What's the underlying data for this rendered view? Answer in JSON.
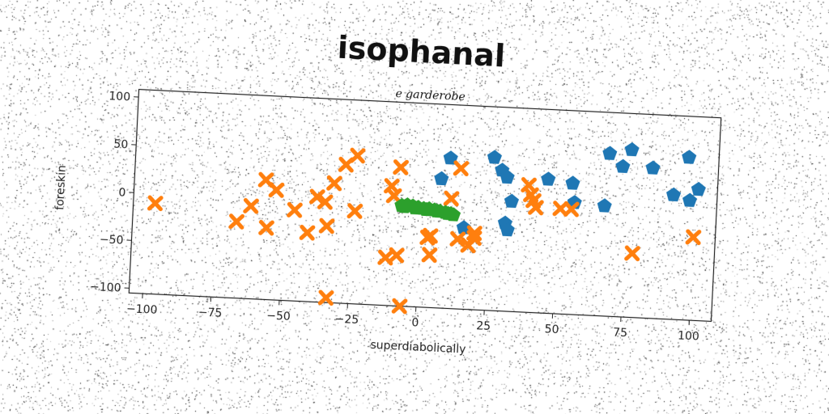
{
  "chart_data": {
    "type": "scatter",
    "title": "isophanal",
    "subtitle": "e garderobe",
    "xlabel": "superdiabolically",
    "ylabel": "foreskin",
    "xlim": [
      -105,
      108
    ],
    "ylim": [
      -105,
      108
    ],
    "xticks": [
      -100,
      -75,
      -50,
      -25,
      0,
      25,
      50,
      75,
      100
    ],
    "yticks": [
      -100,
      -50,
      0,
      50,
      100
    ],
    "grid": false,
    "colors": {
      "blue": "#1f77b4",
      "orange": "#ff7f0e",
      "green": "#2ca02c"
    },
    "series": [
      {
        "marker": "pentagon",
        "color": "#1f77b4",
        "points": [
          [
            10,
            52
          ],
          [
            26,
            55
          ],
          [
            29,
            42
          ],
          [
            31,
            35
          ],
          [
            7,
            30
          ],
          [
            33,
            10
          ],
          [
            31,
            -13
          ],
          [
            32,
            -20
          ],
          [
            46,
            35
          ],
          [
            55,
            32
          ],
          [
            56,
            12
          ],
          [
            67,
            10
          ],
          [
            68,
            65
          ],
          [
            73,
            52
          ],
          [
            76,
            70
          ],
          [
            84,
            52
          ],
          [
            92,
            25
          ],
          [
            97,
            65
          ],
          [
            98,
            20
          ],
          [
            101,
            32
          ],
          [
            16,
            -20
          ]
        ]
      },
      {
        "marker": "x",
        "color": "#ff7f0e",
        "points": [
          [
            -97,
            -10
          ],
          [
            -67,
            -25
          ],
          [
            -62,
            -8
          ],
          [
            -57,
            20
          ],
          [
            -53,
            10
          ],
          [
            -56,
            -30
          ],
          [
            -46,
            -10
          ],
          [
            -41,
            -33
          ],
          [
            -38,
            5
          ],
          [
            -35,
            0
          ],
          [
            -34,
            -25
          ],
          [
            -32,
            20
          ],
          [
            -33,
            -100
          ],
          [
            -28,
            40
          ],
          [
            -24,
            -8
          ],
          [
            -24,
            50
          ],
          [
            -11,
            20
          ],
          [
            -10,
            10
          ],
          [
            -8,
            40
          ],
          [
            -12,
            -55
          ],
          [
            -8,
            -52
          ],
          [
            -6,
            -105
          ],
          [
            3,
            -32
          ],
          [
            4,
            -30
          ],
          [
            4,
            -50
          ],
          [
            11,
            10
          ],
          [
            14,
            42
          ],
          [
            14,
            -32
          ],
          [
            18,
            -38
          ],
          [
            20,
            -30
          ],
          [
            20,
            -25
          ],
          [
            39,
            28
          ],
          [
            40,
            18
          ],
          [
            41,
            12
          ],
          [
            42,
            5
          ],
          [
            51,
            5
          ],
          [
            55,
            5
          ],
          [
            78,
            -38
          ],
          [
            100,
            -18
          ]
        ]
      },
      {
        "marker": "pentagon",
        "color": "#2ca02c",
        "points": [
          [
            -7,
            0
          ],
          [
            -5,
            1
          ],
          [
            -3,
            0
          ],
          [
            -1,
            -1
          ],
          [
            1,
            -2
          ],
          [
            3,
            -2
          ],
          [
            5,
            -3
          ],
          [
            7,
            -4
          ],
          [
            9,
            -5
          ],
          [
            11,
            -6
          ],
          [
            12,
            -7
          ],
          [
            -6,
            -1
          ],
          [
            -2,
            -2
          ],
          [
            2,
            -3
          ],
          [
            6,
            -4
          ],
          [
            10,
            -6
          ]
        ]
      }
    ]
  }
}
